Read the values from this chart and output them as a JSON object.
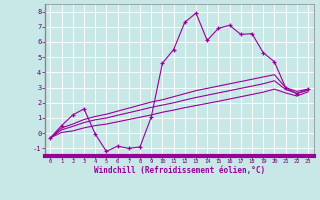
{
  "title": "",
  "xlabel": "Windchill (Refroidissement éolien,°C)",
  "ylabel": "",
  "bg_color": "#c8e8e8",
  "line_color": "#990099",
  "grid_color": "#aacccc",
  "x_data": [
    0,
    1,
    2,
    3,
    4,
    5,
    6,
    7,
    8,
    9,
    10,
    11,
    12,
    13,
    14,
    15,
    16,
    17,
    18,
    19,
    20,
    21,
    22,
    23
  ],
  "y_main": [
    -0.3,
    0.5,
    1.2,
    1.6,
    -0.05,
    -1.2,
    -0.85,
    -1.0,
    -0.9,
    1.05,
    4.6,
    5.5,
    7.3,
    7.9,
    6.1,
    6.9,
    7.1,
    6.5,
    6.55,
    5.3,
    4.7,
    3.0,
    2.6,
    2.9
  ],
  "y_line1": [
    -0.3,
    0.35,
    0.6,
    0.9,
    1.1,
    1.25,
    1.45,
    1.65,
    1.85,
    2.05,
    2.2,
    2.4,
    2.6,
    2.8,
    2.95,
    3.1,
    3.25,
    3.4,
    3.55,
    3.7,
    3.85,
    3.0,
    2.75,
    2.9
  ],
  "y_line2": [
    -0.3,
    0.22,
    0.45,
    0.7,
    0.88,
    1.0,
    1.18,
    1.35,
    1.52,
    1.7,
    1.85,
    2.0,
    2.18,
    2.35,
    2.5,
    2.65,
    2.8,
    2.95,
    3.1,
    3.25,
    3.45,
    2.88,
    2.62,
    2.82
  ],
  "y_line3": [
    -0.3,
    0.05,
    0.15,
    0.35,
    0.5,
    0.6,
    0.75,
    0.9,
    1.05,
    1.2,
    1.38,
    1.52,
    1.68,
    1.82,
    1.96,
    2.1,
    2.25,
    2.4,
    2.55,
    2.7,
    2.9,
    2.65,
    2.45,
    2.72
  ],
  "xlim": [
    -0.5,
    23.5
  ],
  "ylim": [
    -1.5,
    8.5
  ],
  "yticks": [
    -1,
    0,
    1,
    2,
    3,
    4,
    5,
    6,
    7,
    8
  ],
  "xticks": [
    0,
    1,
    2,
    3,
    4,
    5,
    6,
    7,
    8,
    9,
    10,
    11,
    12,
    13,
    14,
    15,
    16,
    17,
    18,
    19,
    20,
    21,
    22,
    23
  ]
}
